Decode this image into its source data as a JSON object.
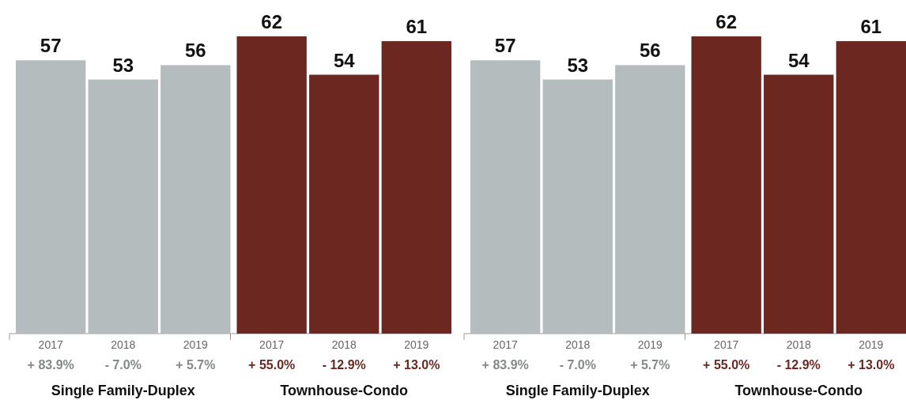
{
  "chart_data": [
    {
      "type": "bar",
      "categories": [
        "2017",
        "2018",
        "2019",
        "2017",
        "2018",
        "2019"
      ],
      "series": [
        {
          "color": "#b5bcbd",
          "values": [
            57,
            53,
            56,
            null,
            null,
            null
          ]
        },
        {
          "color": "#6b2720",
          "values": [
            null,
            null,
            null,
            62,
            54,
            61
          ]
        }
      ],
      "data_labels": true,
      "annotations": [
        "+ 83.9%",
        "- 7.0%",
        "+ 5.7%",
        "+ 55.0%",
        "- 12.9%",
        "+ 13.0%",
        "Single Family-Duplex",
        "Townhouse-Condo"
      ]
    },
    {
      "type": "bar",
      "categories": [
        "2017",
        "2018",
        "2019",
        "2017",
        "2018",
        "2019"
      ],
      "series": [
        {
          "color": "#b5bcbd",
          "values": [
            57,
            53,
            56,
            null,
            null,
            null
          ]
        },
        {
          "color": "#6b2720",
          "values": [
            null,
            null,
            null,
            62,
            54,
            61
          ]
        }
      ],
      "data_labels": true,
      "annotations": [
        "+ 83.9%",
        "- 7.0%",
        "+ 5.7%",
        "+ 55.0%",
        "- 12.9%",
        "+ 13.0%",
        "Single Family-Duplex",
        "Townhouse-Condo"
      ]
    }
  ]
}
